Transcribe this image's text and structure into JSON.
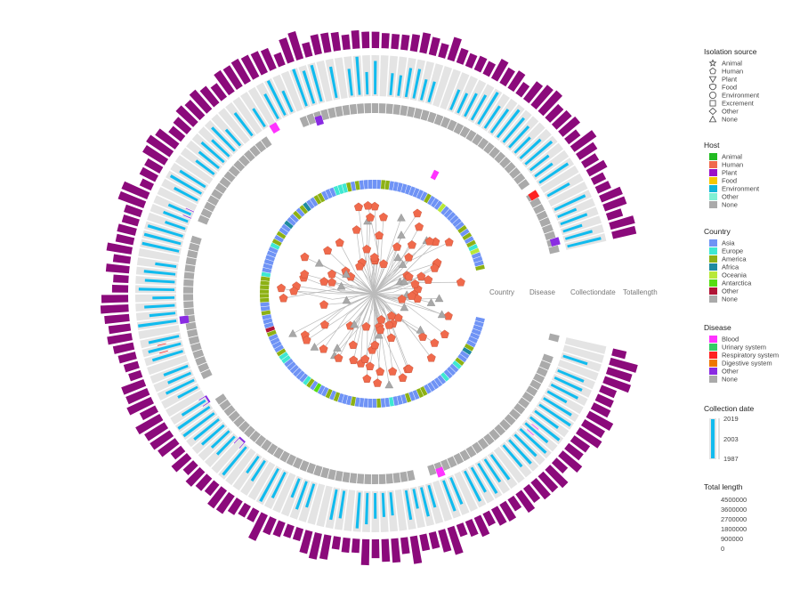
{
  "ring_labels": {
    "country": "Country",
    "disease": "Disease",
    "collection_date": "Collectiondate",
    "total_length": "Totallength"
  },
  "legends": {
    "isolation_source": {
      "title": "Isolation source",
      "items": [
        {
          "label": "Animal",
          "shape": "star"
        },
        {
          "label": "Human",
          "shape": "pentagon"
        },
        {
          "label": "Plant",
          "shape": "triangle-down"
        },
        {
          "label": "Food",
          "shape": "shield"
        },
        {
          "label": "Environment",
          "shape": "circle"
        },
        {
          "label": "Excrement",
          "shape": "square"
        },
        {
          "label": "Other",
          "shape": "diamond"
        },
        {
          "label": "None",
          "shape": "triangle-up"
        }
      ]
    },
    "host": {
      "title": "Host",
      "items": [
        {
          "label": "Animal",
          "color": "#22bb22"
        },
        {
          "label": "Human",
          "color": "#f06a4c"
        },
        {
          "label": "Plant",
          "color": "#9a11c8"
        },
        {
          "label": "Food",
          "color": "#f5c800"
        },
        {
          "label": "Environment",
          "color": "#11b5d8"
        },
        {
          "label": "Other",
          "color": "#7ff0d4"
        },
        {
          "label": "None",
          "color": "#aaaaaa"
        }
      ]
    },
    "country": {
      "title": "Country",
      "items": [
        {
          "label": "Asia",
          "color": "#6f93f5"
        },
        {
          "label": "Europe",
          "color": "#3ee8d2"
        },
        {
          "label": "America",
          "color": "#8db114"
        },
        {
          "label": "Africa",
          "color": "#1f8aa0"
        },
        {
          "label": "Oceania",
          "color": "#b8e83a"
        },
        {
          "label": "Antarctica",
          "color": "#55dd11"
        },
        {
          "label": "Other",
          "color": "#b01536"
        },
        {
          "label": "None",
          "color": "#aaaaaa"
        }
      ]
    },
    "disease": {
      "title": "Disease",
      "items": [
        {
          "label": "Blood",
          "color": "#ff33ff"
        },
        {
          "label": "Urinary system",
          "color": "#33cc66"
        },
        {
          "label": "Respiratory system",
          "color": "#ff2222"
        },
        {
          "label": "Digestive system",
          "color": "#ee7700"
        },
        {
          "label": "Other",
          "color": "#8a2be2"
        },
        {
          "label": "None",
          "color": "#aaaaaa"
        }
      ]
    },
    "collection_date": {
      "title": "Collection date",
      "ticks": [
        "2019",
        "2003",
        "1987"
      ],
      "color": "#11bbee"
    },
    "total_length": {
      "title": "Total length",
      "ticks": [
        "4500000",
        "3600000",
        "2700000",
        "1800000",
        "900000",
        "0"
      ],
      "color": "#8b0a7b"
    }
  },
  "colors": {
    "tip_human": "#f06a4c",
    "tip_none": "#a8a8a8",
    "branch": "#bbbbbb",
    "disease_none": "#aaaaaa",
    "date_background": "#e4e4e4",
    "date_bar": "#11bbee",
    "length_bar": "#8b0a7b"
  }
}
